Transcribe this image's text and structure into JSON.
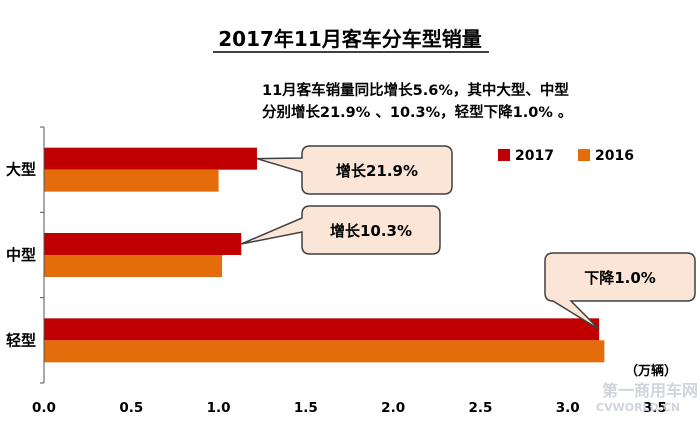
{
  "chart_data": {
    "type": "bar",
    "orientation": "horizontal",
    "title": "2017年11月客车分车型销量",
    "subtitle_lines": [
      "11月客车销量同比增长5.6%，其中大型、中型",
      "分别增长21.9% 、10.3%，轻型下降1.0% 。"
    ],
    "categories": [
      "大型",
      "中型",
      "轻型"
    ],
    "series": [
      {
        "name": "2017",
        "color": "#C00000",
        "values": [
          1.22,
          1.13,
          3.18
        ]
      },
      {
        "name": "2016",
        "color": "#E46C0A",
        "values": [
          1.0,
          1.02,
          3.21
        ]
      }
    ],
    "xlim": [
      0,
      3.5
    ],
    "xticks": [
      "0.0",
      "0.5",
      "1.0",
      "1.5",
      "2.0",
      "2.5",
      "3.0",
      "3.5"
    ],
    "unit_label": "（万辆）",
    "legend_position": "right",
    "callouts": [
      {
        "text": "增长21.9%",
        "category": "大型"
      },
      {
        "text": "增长10.3%",
        "category": "中型"
      },
      {
        "text": "下降1.0%",
        "category": "轻型"
      }
    ],
    "grid": false
  },
  "watermark": {
    "line1": "第一商用车网",
    "line2": "CVWORLD.CN"
  }
}
